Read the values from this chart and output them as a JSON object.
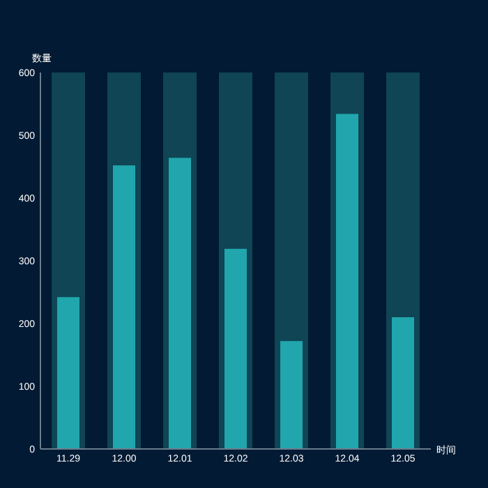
{
  "chart_data": {
    "type": "bar",
    "ylabel": "数量",
    "xlabel": "时间",
    "categories": [
      "11.29",
      "12.00",
      "12.01",
      "12.02",
      "12.03",
      "12.04",
      "12.05"
    ],
    "series": [
      {
        "color": "#0f4555",
        "values": [
          600,
          600,
          600,
          600,
          600,
          600,
          600
        ]
      },
      {
        "color": "#21a6ad",
        "values": [
          242,
          452,
          464,
          319,
          172,
          534,
          210
        ]
      }
    ],
    "ylim": [
      0,
      600
    ],
    "yticks": [
      0,
      100,
      200,
      300,
      400,
      500,
      600
    ],
    "grid": false
  }
}
